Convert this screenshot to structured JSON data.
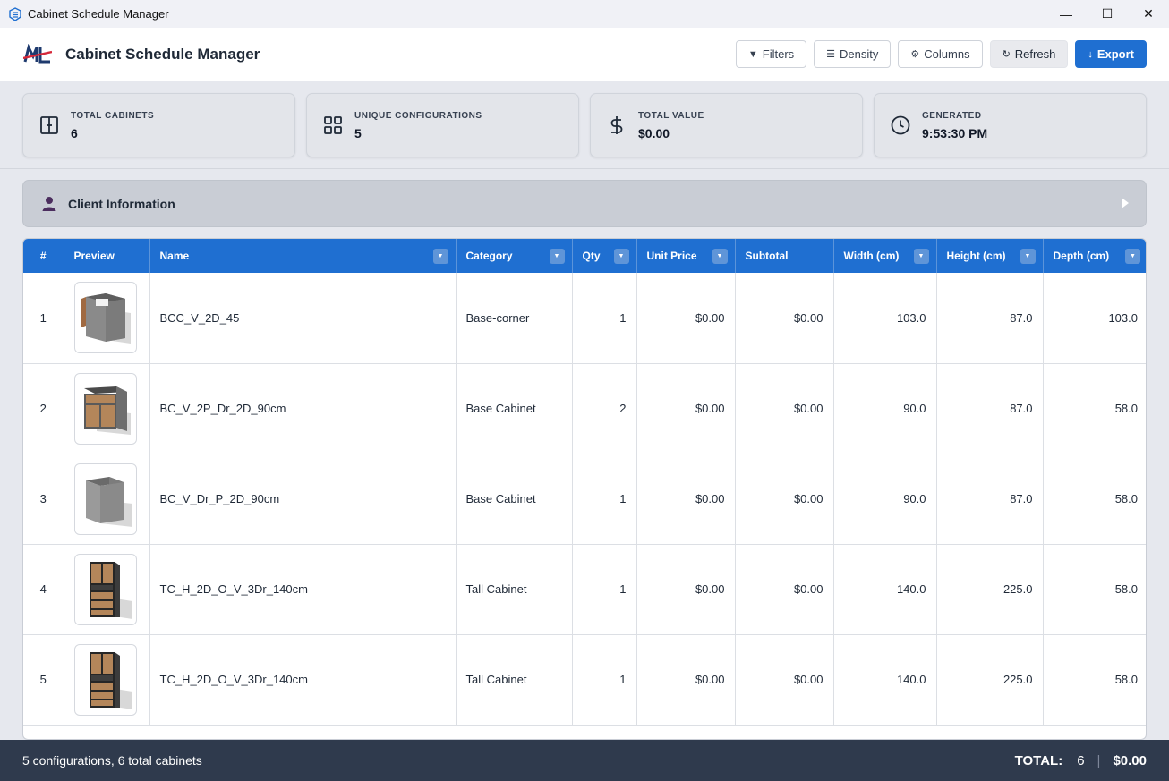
{
  "window": {
    "title": "Cabinet Schedule Manager",
    "controls": [
      "—",
      "☐",
      "✕"
    ]
  },
  "header": {
    "app_name": "Cabinet Schedule Manager",
    "buttons": {
      "filters": "Filters",
      "density": "Density",
      "columns": "Columns",
      "refresh": "Refresh",
      "export": "Export"
    }
  },
  "stats": [
    {
      "label": "Total Cabinets",
      "value": "6",
      "icon": "cabinet-icon"
    },
    {
      "label": "Unique Configurations",
      "value": "5",
      "icon": "grid-icon"
    },
    {
      "label": "Total Value",
      "value": "$0.00",
      "icon": "dollar-icon"
    },
    {
      "label": "Generated",
      "value": "9:53:30 PM",
      "icon": "clock-icon"
    }
  ],
  "client_info": {
    "label": "Client Information"
  },
  "table": {
    "columns": [
      "#",
      "Preview",
      "Name",
      "Category",
      "Qty",
      "Unit Price",
      "Subtotal",
      "Width (cm)",
      "Height (cm)",
      "Depth (cm)"
    ],
    "rows": [
      {
        "idx": "1",
        "name": "BCC_V_2D_45",
        "category": "Base-corner",
        "qty": "1",
        "unit_price": "$0.00",
        "subtotal": "$0.00",
        "width": "103.0",
        "height": "87.0",
        "depth": "103.0",
        "preview": "base-corner-cabinet"
      },
      {
        "idx": "2",
        "name": "BC_V_2P_Dr_2D_90cm",
        "category": "Base Cabinet",
        "qty": "2",
        "unit_price": "$0.00",
        "subtotal": "$0.00",
        "width": "90.0",
        "height": "87.0",
        "depth": "58.0",
        "preview": "base-cabinet-wood"
      },
      {
        "idx": "3",
        "name": "BC_V_Dr_P_2D_90cm",
        "category": "Base Cabinet",
        "qty": "1",
        "unit_price": "$0.00",
        "subtotal": "$0.00",
        "width": "90.0",
        "height": "87.0",
        "depth": "58.0",
        "preview": "base-cabinet-gray"
      },
      {
        "idx": "4",
        "name": "TC_H_2D_O_V_3Dr_140cm",
        "category": "Tall Cabinet",
        "qty": "1",
        "unit_price": "$0.00",
        "subtotal": "$0.00",
        "width": "140.0",
        "height": "225.0",
        "depth": "58.0",
        "preview": "tall-cabinet"
      },
      {
        "idx": "5",
        "name": "TC_H_2D_O_V_3Dr_140cm",
        "category": "Tall Cabinet",
        "qty": "1",
        "unit_price": "$0.00",
        "subtotal": "$0.00",
        "width": "140.0",
        "height": "225.0",
        "depth": "58.0",
        "preview": "tall-cabinet"
      }
    ]
  },
  "footer": {
    "summary": "5 configurations, 6 total cabinets",
    "total_label": "TOTAL:",
    "total_qty": "6",
    "divider": "|",
    "total_value": "$0.00"
  },
  "colors": {
    "accent": "#1f6fd1",
    "footer_bg": "#2f3a4d",
    "header_row": "#1f6fd1"
  }
}
